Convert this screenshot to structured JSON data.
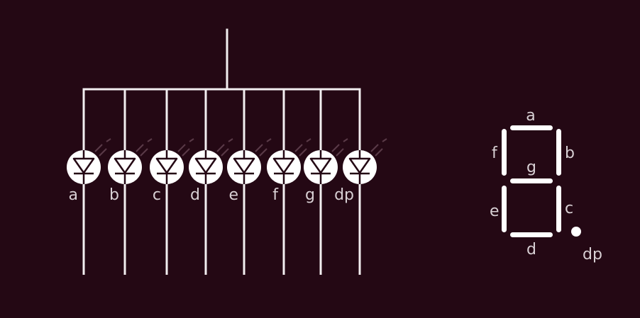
{
  "colors": {
    "background": "#240814",
    "line": "#f2eef0",
    "label": "#d8d0d4",
    "led_fill": "#ffffff",
    "led_symbol": "#240814"
  },
  "led_array": {
    "labels": [
      "a",
      "b",
      "c",
      "d",
      "e",
      "f",
      "g",
      "dp"
    ]
  },
  "seven_segment": {
    "labels": {
      "a": "a",
      "b": "b",
      "c": "c",
      "d": "d",
      "e": "e",
      "f": "f",
      "g": "g",
      "dp": "dp"
    }
  }
}
